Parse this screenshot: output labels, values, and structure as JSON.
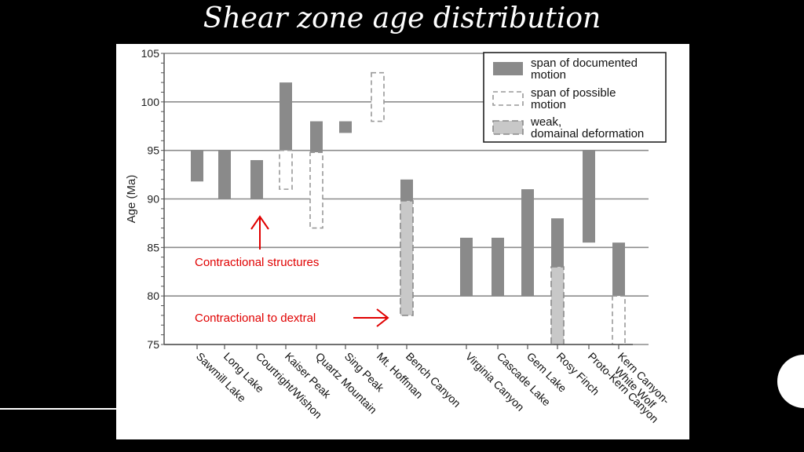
{
  "slide": {
    "title": "Shear zone age distribution"
  },
  "chart_data": {
    "type": "bar",
    "title": "",
    "xlabel": "",
    "ylabel": "Age (Ma)",
    "ylim": [
      75,
      105
    ],
    "yticks": [
      75,
      80,
      85,
      90,
      95,
      100,
      105
    ],
    "grid": true,
    "legend_position": "top-right",
    "categories": [
      "Sawmill Lake",
      "Long Lake",
      "Courtright/Wishon",
      "Kaiser Peak",
      "Quartz Mountain",
      "Sing Peak",
      "Mt. Hoffman",
      "Bench Canyon",
      "Virginia Canyon",
      "Cascade Lake",
      "Gem Lake",
      "Rosy Finch",
      "Proto-Kern Canyon",
      "Kern Canyon-White Wolf"
    ],
    "series": [
      {
        "name": "span of documented motion",
        "color": "#8a8a8a",
        "ranges": [
          [
            91.8,
            95
          ],
          [
            90,
            95
          ],
          [
            90,
            94
          ],
          [
            95,
            102
          ],
          [
            94.8,
            98
          ],
          [
            96.8,
            98
          ],
          null,
          [
            89.8,
            92
          ],
          [
            80,
            86
          ],
          [
            80,
            86
          ],
          [
            80,
            91
          ],
          [
            83,
            88
          ],
          [
            85.5,
            95
          ],
          [
            80,
            85.5
          ]
        ]
      },
      {
        "name": "span of possible motion",
        "color": "#999999",
        "ranges": [
          null,
          null,
          null,
          [
            91,
            95
          ],
          [
            87,
            94.8
          ],
          null,
          [
            98,
            103
          ],
          null,
          null,
          null,
          null,
          null,
          null,
          [
            75,
            80
          ]
        ]
      },
      {
        "name": "weak, domainal deformation",
        "color": "#c8c8c8",
        "ranges": [
          null,
          null,
          null,
          null,
          null,
          null,
          null,
          [
            78,
            89.8
          ],
          null,
          null,
          null,
          [
            75,
            83
          ],
          null,
          null
        ]
      }
    ],
    "annotations": [
      {
        "text": "Contractional structures",
        "color": "#e00000"
      },
      {
        "text": "Contractional to dextral",
        "color": "#e00000"
      }
    ]
  }
}
